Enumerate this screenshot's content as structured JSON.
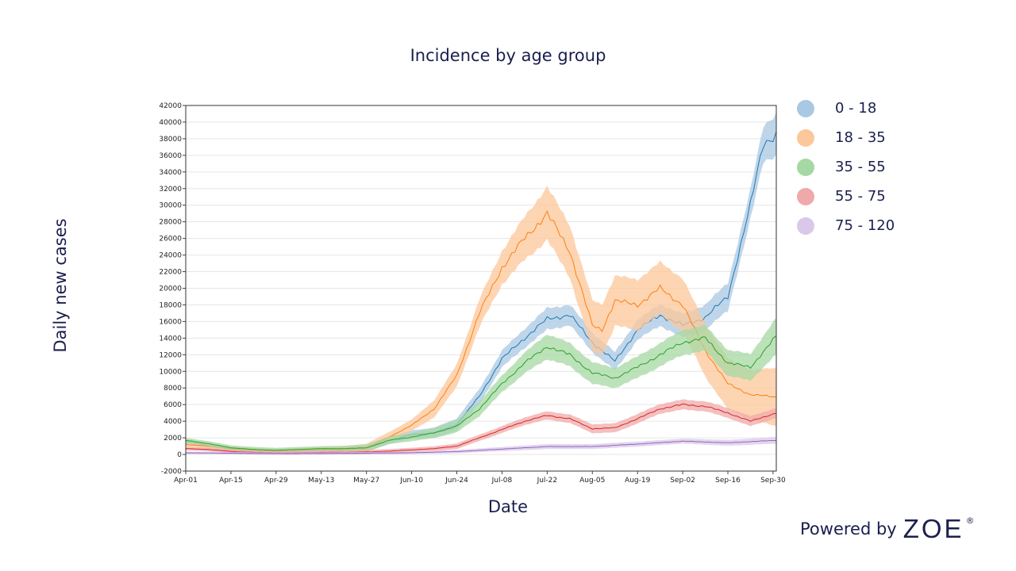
{
  "title": "Incidence by age group",
  "branding": {
    "prefix": "Powered by",
    "brand": "ZOE",
    "mark": "®"
  },
  "chart_data": {
    "type": "area",
    "title": "Incidence by age group",
    "xlabel": "Date",
    "ylabel": "Daily new cases",
    "ylim": [
      -2000,
      42000
    ],
    "yticks": [
      -2000,
      0,
      2000,
      4000,
      6000,
      8000,
      10000,
      12000,
      14000,
      16000,
      18000,
      20000,
      22000,
      24000,
      26000,
      28000,
      30000,
      32000,
      34000,
      36000,
      38000,
      40000,
      42000
    ],
    "xlim": [
      "2020-04-01",
      "2020-10-01"
    ],
    "xticks": [
      {
        "date": "2020-04-01",
        "label": "Apr-01"
      },
      {
        "date": "2020-04-15",
        "label": "Apr-15"
      },
      {
        "date": "2020-04-29",
        "label": "Apr-29"
      },
      {
        "date": "2020-05-13",
        "label": "May-13"
      },
      {
        "date": "2020-05-27",
        "label": "May-27"
      },
      {
        "date": "2020-06-10",
        "label": "Jun-10"
      },
      {
        "date": "2020-06-24",
        "label": "Jun-24"
      },
      {
        "date": "2020-07-08",
        "label": "Jul-08"
      },
      {
        "date": "2020-07-22",
        "label": "Jul-22"
      },
      {
        "date": "2020-08-05",
        "label": "Aug-05"
      },
      {
        "date": "2020-08-19",
        "label": "Aug-19"
      },
      {
        "date": "2020-09-02",
        "label": "Sep-02"
      },
      {
        "date": "2020-09-16",
        "label": "Sep-16"
      },
      {
        "date": "2020-09-30",
        "label": "Sep-30"
      }
    ],
    "grid": "horizontal",
    "legend_position": "right",
    "series": [
      {
        "name": "0 - 18",
        "color": "#1f77b4",
        "band_color": "#a9c8e3",
        "points": [
          [
            "2020-04-01",
            1500
          ],
          [
            "2020-04-08",
            1100
          ],
          [
            "2020-04-15",
            600
          ],
          [
            "2020-04-22",
            400
          ],
          [
            "2020-04-29",
            300
          ],
          [
            "2020-05-06",
            350
          ],
          [
            "2020-05-13",
            500
          ],
          [
            "2020-05-20",
            550
          ],
          [
            "2020-05-27",
            700
          ],
          [
            "2020-06-03",
            1700
          ],
          [
            "2020-06-10",
            2400
          ],
          [
            "2020-06-17",
            2600
          ],
          [
            "2020-06-24",
            3600
          ],
          [
            "2020-07-01",
            7000
          ],
          [
            "2020-07-08",
            11500
          ],
          [
            "2020-07-15",
            14000
          ],
          [
            "2020-07-22",
            16300
          ],
          [
            "2020-07-29",
            16800
          ],
          [
            "2020-08-05",
            13500
          ],
          [
            "2020-08-12",
            11200
          ],
          [
            "2020-08-19",
            15000
          ],
          [
            "2020-08-26",
            16800
          ],
          [
            "2020-09-02",
            15500
          ],
          [
            "2020-09-09",
            16500
          ],
          [
            "2020-09-16",
            19000
          ],
          [
            "2020-09-23",
            30000
          ],
          [
            "2020-09-27",
            37500
          ],
          [
            "2020-10-01",
            38500
          ]
        ],
        "band": [
          [
            "2020-04-01",
            300
          ],
          [
            "2020-05-13",
            300
          ],
          [
            "2020-06-10",
            500
          ],
          [
            "2020-07-08",
            1000
          ],
          [
            "2020-07-22",
            1300
          ],
          [
            "2020-08-12",
            1100
          ],
          [
            "2020-09-02",
            1400
          ],
          [
            "2020-09-23",
            1800
          ],
          [
            "2020-10-01",
            2500
          ]
        ]
      },
      {
        "name": "18 - 35",
        "color": "#ff7f0e",
        "band_color": "#fcc79a",
        "points": [
          [
            "2020-04-01",
            1200
          ],
          [
            "2020-04-08",
            1000
          ],
          [
            "2020-04-15",
            700
          ],
          [
            "2020-04-22",
            500
          ],
          [
            "2020-04-29",
            400
          ],
          [
            "2020-05-06",
            500
          ],
          [
            "2020-05-13",
            600
          ],
          [
            "2020-05-20",
            600
          ],
          [
            "2020-05-27",
            800
          ],
          [
            "2020-06-03",
            2100
          ],
          [
            "2020-06-10",
            3500
          ],
          [
            "2020-06-17",
            5500
          ],
          [
            "2020-06-24",
            9500
          ],
          [
            "2020-07-01",
            17000
          ],
          [
            "2020-07-08",
            22500
          ],
          [
            "2020-07-15",
            26000
          ],
          [
            "2020-07-22",
            29000
          ],
          [
            "2020-07-29",
            24500
          ],
          [
            "2020-08-05",
            15500
          ],
          [
            "2020-08-08",
            15000
          ],
          [
            "2020-08-12",
            18500
          ],
          [
            "2020-08-19",
            18000
          ],
          [
            "2020-08-26",
            20000
          ],
          [
            "2020-09-02",
            18000
          ],
          [
            "2020-09-09",
            12500
          ],
          [
            "2020-09-16",
            8500
          ],
          [
            "2020-09-23",
            7200
          ],
          [
            "2020-10-01",
            6900
          ]
        ],
        "band": [
          [
            "2020-04-01",
            300
          ],
          [
            "2020-05-13",
            300
          ],
          [
            "2020-06-10",
            700
          ],
          [
            "2020-07-08",
            2000
          ],
          [
            "2020-07-22",
            3200
          ],
          [
            "2020-08-12",
            3000
          ],
          [
            "2020-09-02",
            3200
          ],
          [
            "2020-09-23",
            3000
          ],
          [
            "2020-10-01",
            3500
          ]
        ]
      },
      {
        "name": "35 - 55",
        "color": "#2ca02c",
        "band_color": "#a5d8a3",
        "points": [
          [
            "2020-04-01",
            1700
          ],
          [
            "2020-04-08",
            1300
          ],
          [
            "2020-04-15",
            800
          ],
          [
            "2020-04-22",
            600
          ],
          [
            "2020-04-29",
            500
          ],
          [
            "2020-05-06",
            600
          ],
          [
            "2020-05-13",
            700
          ],
          [
            "2020-05-20",
            700
          ],
          [
            "2020-05-27",
            800
          ],
          [
            "2020-06-03",
            1700
          ],
          [
            "2020-06-10",
            2100
          ],
          [
            "2020-06-17",
            2600
          ],
          [
            "2020-06-24",
            3400
          ],
          [
            "2020-07-01",
            5500
          ],
          [
            "2020-07-08",
            8500
          ],
          [
            "2020-07-15",
            11000
          ],
          [
            "2020-07-22",
            13000
          ],
          [
            "2020-07-29",
            12000
          ],
          [
            "2020-08-05",
            9800
          ],
          [
            "2020-08-12",
            9200
          ],
          [
            "2020-08-19",
            10500
          ],
          [
            "2020-08-26",
            12000
          ],
          [
            "2020-09-02",
            13500
          ],
          [
            "2020-09-09",
            14000
          ],
          [
            "2020-09-16",
            11000
          ],
          [
            "2020-09-23",
            10500
          ],
          [
            "2020-10-01",
            14200
          ]
        ],
        "band": [
          [
            "2020-04-01",
            300
          ],
          [
            "2020-05-13",
            300
          ],
          [
            "2020-06-10",
            500
          ],
          [
            "2020-07-08",
            1000
          ],
          [
            "2020-07-22",
            1500
          ],
          [
            "2020-08-12",
            1200
          ],
          [
            "2020-09-02",
            1500
          ],
          [
            "2020-09-23",
            1600
          ],
          [
            "2020-10-01",
            2200
          ]
        ]
      },
      {
        "name": "55 - 75",
        "color": "#d62728",
        "band_color": "#f0a9a9",
        "points": [
          [
            "2020-04-01",
            700
          ],
          [
            "2020-04-08",
            600
          ],
          [
            "2020-04-15",
            350
          ],
          [
            "2020-04-22",
            250
          ],
          [
            "2020-04-29",
            200
          ],
          [
            "2020-05-06",
            200
          ],
          [
            "2020-05-13",
            250
          ],
          [
            "2020-05-20",
            250
          ],
          [
            "2020-05-27",
            300
          ],
          [
            "2020-06-03",
            400
          ],
          [
            "2020-06-10",
            550
          ],
          [
            "2020-06-17",
            700
          ],
          [
            "2020-06-24",
            1000
          ],
          [
            "2020-07-01",
            2000
          ],
          [
            "2020-07-08",
            3000
          ],
          [
            "2020-07-15",
            4000
          ],
          [
            "2020-07-22",
            4700
          ],
          [
            "2020-07-29",
            4300
          ],
          [
            "2020-08-05",
            3100
          ],
          [
            "2020-08-12",
            3200
          ],
          [
            "2020-08-19",
            4300
          ],
          [
            "2020-08-26",
            5500
          ],
          [
            "2020-09-02",
            6000
          ],
          [
            "2020-09-09",
            5800
          ],
          [
            "2020-09-16",
            5000
          ],
          [
            "2020-09-23",
            4000
          ],
          [
            "2020-10-01",
            5000
          ]
        ],
        "band": [
          [
            "2020-04-01",
            200
          ],
          [
            "2020-06-10",
            250
          ],
          [
            "2020-07-22",
            500
          ],
          [
            "2020-09-02",
            600
          ],
          [
            "2020-10-01",
            600
          ]
        ]
      },
      {
        "name": "75 - 120",
        "color": "#9467bd",
        "band_color": "#d9c8ea",
        "points": [
          [
            "2020-04-01",
            200
          ],
          [
            "2020-04-15",
            150
          ],
          [
            "2020-04-29",
            100
          ],
          [
            "2020-05-13",
            120
          ],
          [
            "2020-05-27",
            150
          ],
          [
            "2020-06-10",
            200
          ],
          [
            "2020-06-24",
            350
          ],
          [
            "2020-07-08",
            650
          ],
          [
            "2020-07-22",
            950
          ],
          [
            "2020-08-05",
            950
          ],
          [
            "2020-08-19",
            1250
          ],
          [
            "2020-09-02",
            1600
          ],
          [
            "2020-09-16",
            1400
          ],
          [
            "2020-10-01",
            1700
          ]
        ],
        "band": [
          [
            "2020-04-01",
            150
          ],
          [
            "2020-06-10",
            150
          ],
          [
            "2020-07-22",
            300
          ],
          [
            "2020-09-02",
            300
          ],
          [
            "2020-10-01",
            400
          ]
        ]
      }
    ]
  }
}
